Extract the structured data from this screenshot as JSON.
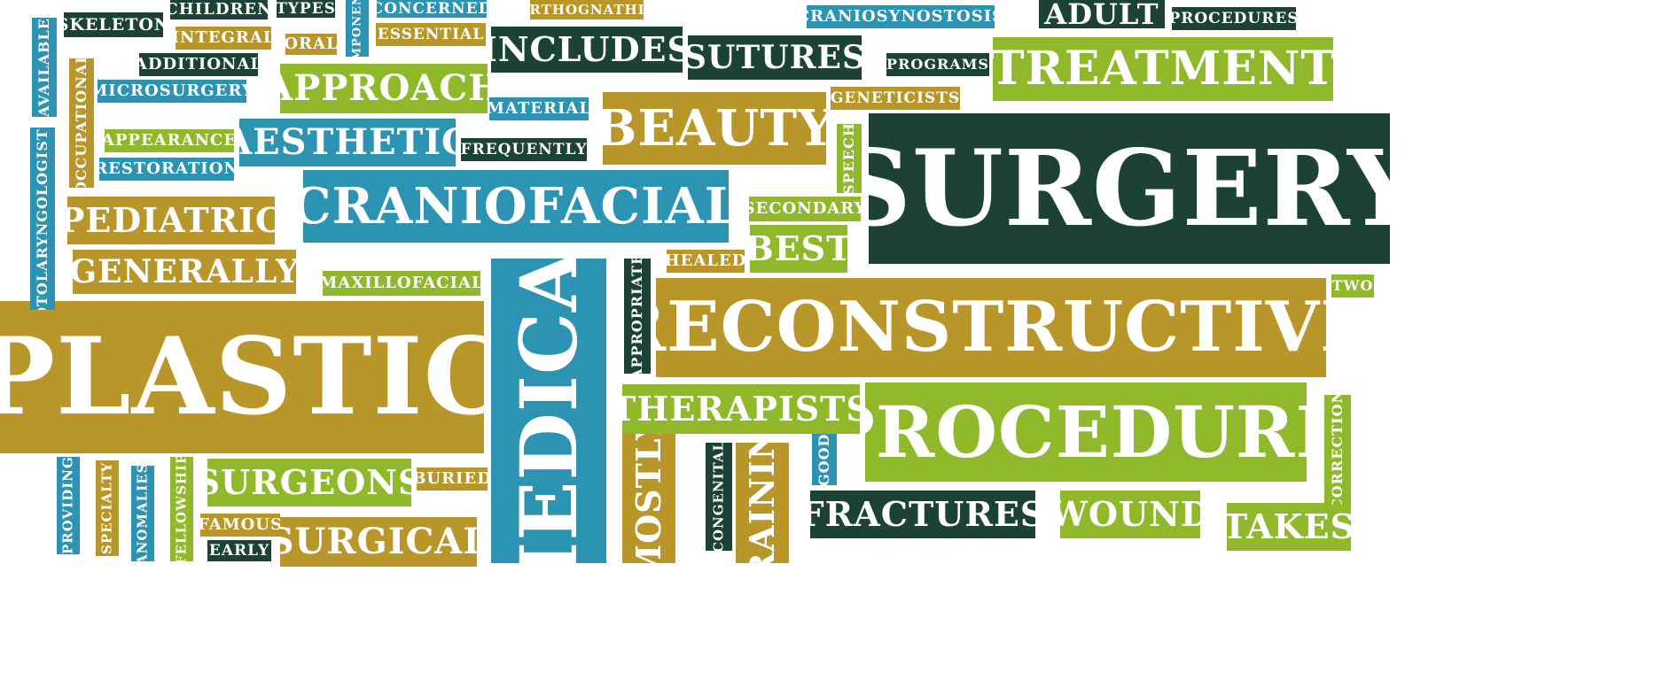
{
  "colors": {
    "dark_green": "#1c4233",
    "olive": "#b8962a",
    "teal": "#2d93b3",
    "lime": "#8fb92b",
    "text": "#ffffff"
  },
  "words": [
    {
      "key": "skeleton",
      "text": "SKELETON",
      "color": "dg"
    },
    {
      "key": "children",
      "text": "CHILDREN",
      "color": "dg"
    },
    {
      "key": "types",
      "text": "TYPES",
      "color": "dg"
    },
    {
      "key": "concerned",
      "text": "CONCERNED",
      "color": "tl"
    },
    {
      "key": "orthognathic",
      "text": "ORTHOGNATHIC",
      "color": "ol"
    },
    {
      "key": "craniosynostosis",
      "text": "CRANIOSYNOSTOSIS",
      "color": "tl"
    },
    {
      "key": "adult",
      "text": "ADULT",
      "color": "dg"
    },
    {
      "key": "procedures",
      "text": "PROCEDURES",
      "color": "dg"
    },
    {
      "key": "integral",
      "text": "INTEGRAL",
      "color": "ol"
    },
    {
      "key": "oral",
      "text": "ORAL",
      "color": "ol"
    },
    {
      "key": "essential",
      "text": "ESSENTIAL",
      "color": "ol"
    },
    {
      "key": "includes",
      "text": "INCLUDES",
      "color": "dg"
    },
    {
      "key": "sutures",
      "text": "SUTURES",
      "color": "dg"
    },
    {
      "key": "programs",
      "text": "PROGRAMS",
      "color": "dg"
    },
    {
      "key": "treatment",
      "text": "TREATMENT",
      "color": "lg"
    },
    {
      "key": "additional",
      "text": "ADDITIONAL",
      "color": "dg"
    },
    {
      "key": "microsurgery",
      "text": "MICROSURGERY",
      "color": "tl"
    },
    {
      "key": "approach",
      "text": "APPROACH",
      "color": "lg"
    },
    {
      "key": "geneticists",
      "text": "GENETICISTS",
      "color": "ol"
    },
    {
      "key": "material",
      "text": "MATERIAL",
      "color": "tl"
    },
    {
      "key": "beauty",
      "text": "BEAUTY",
      "color": "ol"
    },
    {
      "key": "appearance",
      "text": "APPEARANCE",
      "color": "lg"
    },
    {
      "key": "aesthetic",
      "text": "AESTHETIC",
      "color": "tl"
    },
    {
      "key": "frequently",
      "text": "FREQUENTLY",
      "color": "dg"
    },
    {
      "key": "restoration",
      "text": "RESTORATION",
      "color": "tl"
    },
    {
      "key": "surgery",
      "text": "SURGERY",
      "color": "dg"
    },
    {
      "key": "craniofacial",
      "text": "CRANIOFACIAL",
      "color": "tl"
    },
    {
      "key": "secondary",
      "text": "SECONDARY",
      "color": "lg"
    },
    {
      "key": "pediatric",
      "text": "PEDIATRIC",
      "color": "ol"
    },
    {
      "key": "best",
      "text": "BEST",
      "color": "lg"
    },
    {
      "key": "healed",
      "text": "HEALED",
      "color": "ol"
    },
    {
      "key": "generally",
      "text": "GENERALLY",
      "color": "ol"
    },
    {
      "key": "maxillofacial",
      "text": "MAXILLOFACIAL",
      "color": "lg"
    },
    {
      "key": "two",
      "text": "TWO",
      "color": "lg"
    },
    {
      "key": "reconstructive",
      "text": "RECONSTRUCTIVE",
      "color": "ol"
    },
    {
      "key": "plastic",
      "text": "PLASTIC",
      "color": "ol"
    },
    {
      "key": "therapists",
      "text": "THERAPISTS",
      "color": "lg"
    },
    {
      "key": "procedure",
      "text": "PROCEDURE",
      "color": "lg"
    },
    {
      "key": "surgeons",
      "text": "SURGEONS",
      "color": "lg"
    },
    {
      "key": "buried",
      "text": "BURIED",
      "color": "ol"
    },
    {
      "key": "fractures",
      "text": "FRACTURES",
      "color": "dg"
    },
    {
      "key": "wound",
      "text": "WOUND",
      "color": "lg"
    },
    {
      "key": "takes",
      "text": "TAKES",
      "color": "lg"
    },
    {
      "key": "famous",
      "text": "FAMOUS",
      "color": "ol"
    },
    {
      "key": "surgical",
      "text": "SURGICAL",
      "color": "ol"
    },
    {
      "key": "early",
      "text": "EARLY",
      "color": "dg"
    },
    {
      "key": "available",
      "text": "AVAILABLE",
      "color": "tl"
    },
    {
      "key": "occupational",
      "text": "OCCUPATIONAL",
      "color": "ol"
    },
    {
      "key": "otolaryngologists",
      "text": "OTOLARYNGOLOGISTS",
      "color": "tl"
    },
    {
      "key": "components",
      "text": "COMPONENTS",
      "color": "tl"
    },
    {
      "key": "speech",
      "text": "SPEECH",
      "color": "lg"
    },
    {
      "key": "medical",
      "text": "MEDICAL",
      "color": "tl"
    },
    {
      "key": "appropriate",
      "text": "APPROPRIATE",
      "color": "dg"
    },
    {
      "key": "providing",
      "text": "PROVIDING",
      "color": "tl"
    },
    {
      "key": "specialty",
      "text": "SPECIALTY",
      "color": "ol"
    },
    {
      "key": "anomalies",
      "text": "ANOMALIES",
      "color": "tl"
    },
    {
      "key": "fellowship",
      "text": "FELLOWSHIP",
      "color": "lg"
    },
    {
      "key": "mostly",
      "text": "MOSTLY",
      "color": "ol"
    },
    {
      "key": "congenital",
      "text": "CONGENITAL",
      "color": "dg"
    },
    {
      "key": "training",
      "text": "TRAINING",
      "color": "ol"
    },
    {
      "key": "good",
      "text": "GOOD",
      "color": "tl"
    },
    {
      "key": "correction",
      "text": "CORRECTION",
      "color": "lg"
    }
  ]
}
